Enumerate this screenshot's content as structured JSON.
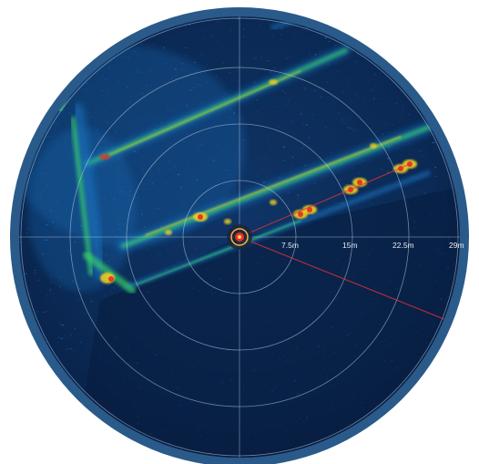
{
  "sonar": {
    "range_labels": [
      "7.5m",
      "15m",
      "22.5m",
      "29m"
    ],
    "colors": {
      "bezel": "#2a5a8a",
      "background": "#0b2a55",
      "background_dark": "#06183a",
      "grid": "#c8d8ea",
      "heading_line": "#e0303a",
      "low_echo": "#1f78c8",
      "mid_echo": "#37d26a",
      "high_echo": "#f0d020",
      "peak_echo": "#e83020"
    }
  }
}
